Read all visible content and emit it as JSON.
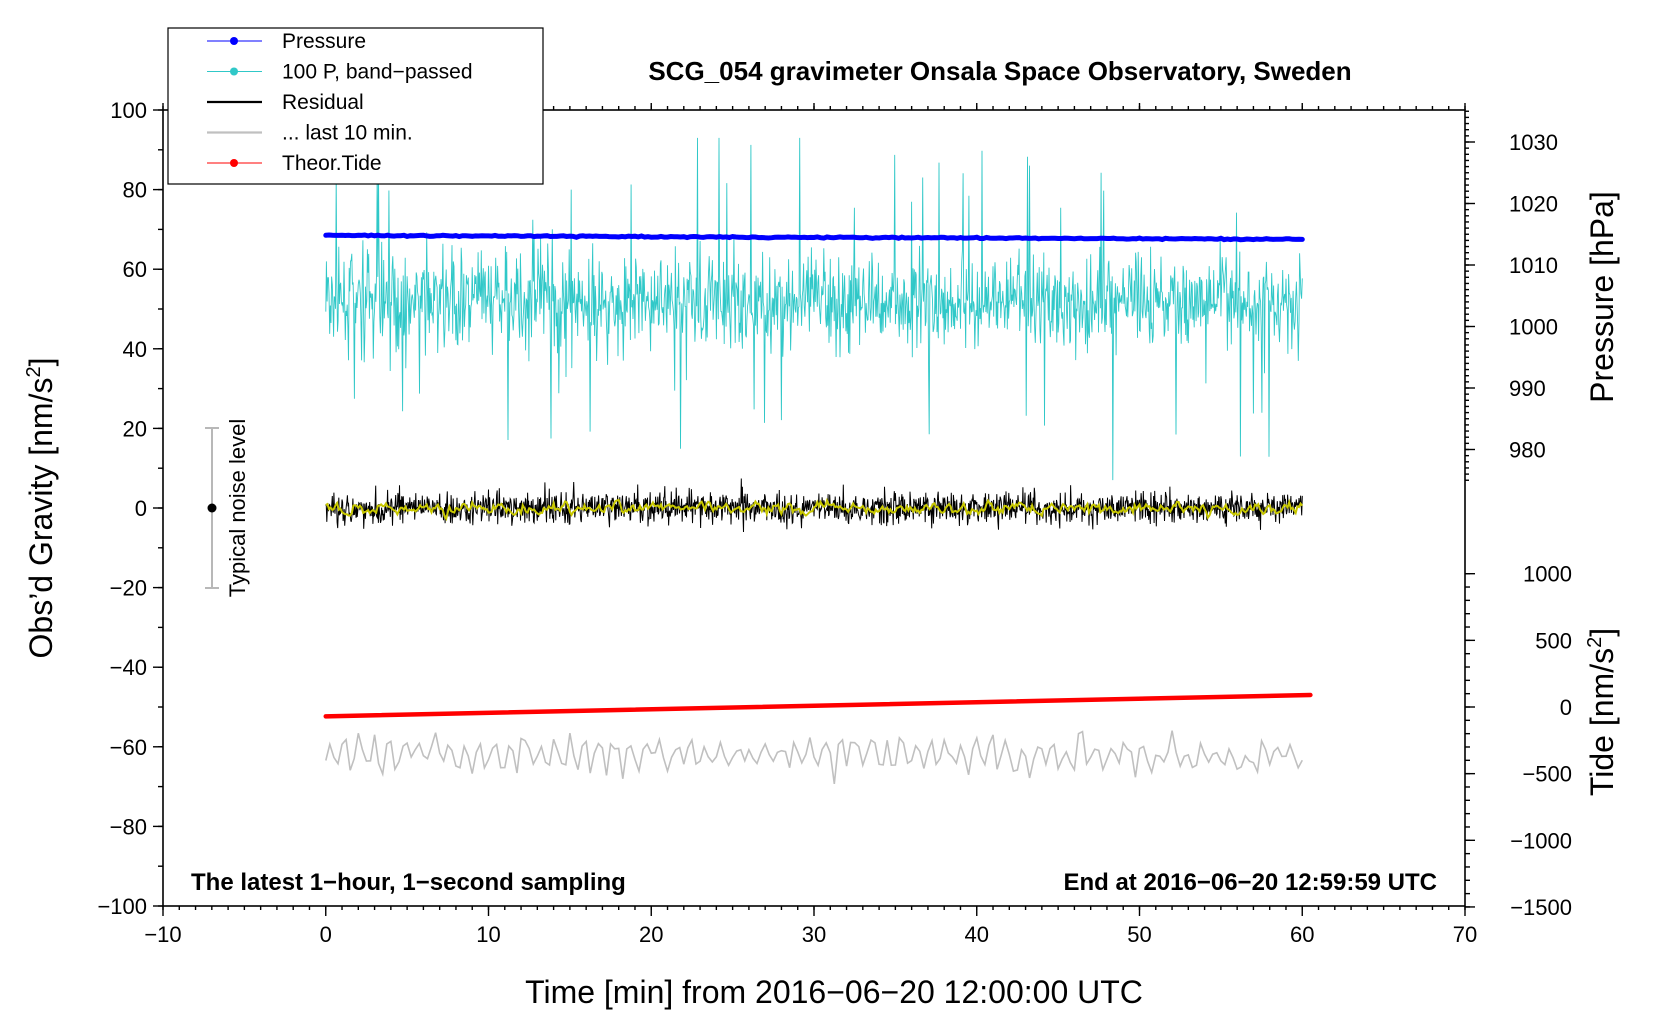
{
  "chart_data": {
    "type": "line",
    "title": "SCG_054 gravimeter Onsala Space Observatory, Sweden",
    "xlabel": "Time [min] from 2016−06−20 12:00:00 UTC",
    "ylabel_left": "Obs’d Gravity [nm/s²]",
    "ylabel_left_main": "Obs’d Gravity [nm/s",
    "ylabel_left_sup": "2",
    "ylabel_left_end": "]",
    "ylabel_pressure": "Pressure [hPa]",
    "ylabel_tide_main": "Tide [nm/s",
    "ylabel_tide_sup": "2",
    "ylabel_tide_end": "]",
    "xlim": [
      -10,
      70
    ],
    "ylim_left": [
      -100,
      100
    ],
    "pressure_range": [
      970,
      1035
    ],
    "tide_range": [
      -1500,
      1500
    ],
    "x_ticks": [
      "−10",
      "0",
      "10",
      "20",
      "30",
      "40",
      "50",
      "60",
      "70"
    ],
    "x_tick_values": [
      -10,
      0,
      10,
      20,
      30,
      40,
      50,
      60,
      70
    ],
    "y_ticks_left": [
      "100",
      "80",
      "60",
      "40",
      "20",
      "0",
      "−20",
      "−40",
      "−60",
      "−80",
      "−100"
    ],
    "y_tick_values_left": [
      100,
      80,
      60,
      40,
      20,
      0,
      -20,
      -40,
      -60,
      -80,
      -100
    ],
    "pressure_ticks": [
      "1030",
      "1020",
      "1010",
      "1000",
      "990",
      "980"
    ],
    "pressure_tick_values": [
      1030,
      1020,
      1010,
      1000,
      990,
      980
    ],
    "tide_ticks": [
      "1000",
      "500",
      "0",
      "−500",
      "−1000",
      "−1500"
    ],
    "tide_tick_values": [
      1000,
      500,
      0,
      -500,
      -1000,
      -1500
    ],
    "legend": [
      {
        "label": "Pressure",
        "color": "#0000ff",
        "marker": true
      },
      {
        "label": "100 P, band−passed",
        "color": "#30c8c8",
        "marker": true
      },
      {
        "label": "Residual",
        "color": "#000000",
        "marker": false
      },
      {
        "label": "... last 10 min.",
        "color": "#c0c0c0",
        "marker": false
      },
      {
        "label": "Theor.Tide",
        "color": "#ff0000",
        "marker": true
      }
    ],
    "series": [
      {
        "name": "Pressure",
        "axis": "left",
        "color": "#0000ff",
        "x_range": [
          0,
          60
        ],
        "start": 68.5,
        "end": 67.5,
        "note": "approx. 1014.8 hPa falling to 1014.2 hPa"
      },
      {
        "name": "100 P, band-passed",
        "axis": "left",
        "color": "#30c8c8",
        "x_range": [
          0,
          60
        ],
        "center": 52,
        "noise_amplitude": 12,
        "min": 7,
        "max": 93
      },
      {
        "name": "Residual",
        "axis": "left",
        "color": "#000000",
        "x_range": [
          0,
          60
        ],
        "center": 0,
        "noise_amplitude": 5,
        "min": -13,
        "max": 10
      },
      {
        "name": "Residual smoothed",
        "axis": "left",
        "color": "#c8c800",
        "x_range": [
          0,
          60
        ],
        "center": 0,
        "noise_amplitude": 1.5
      },
      {
        "name": "... last 10 min.",
        "axis": "left",
        "color": "#c0c0c0",
        "x_range": [
          0,
          60
        ],
        "center": -62,
        "noise_amplitude": 3,
        "min": -72,
        "max": -52
      },
      {
        "name": "Theor.Tide",
        "axis": "tide",
        "color": "#ff0000",
        "x_range": [
          0,
          60.5
        ],
        "start": -70,
        "end": 90
      }
    ],
    "noise_indicator": {
      "label": "Typical noise level",
      "x": -7,
      "y_center": 0,
      "y_low": -20,
      "y_high": 20
    },
    "annotations": {
      "left": "The latest 1−hour, 1−second sampling",
      "right": "End at 2016−06−20 12:59:59 UTC"
    }
  },
  "colors": {
    "pressure": "#0000ff",
    "band": "#30c8c8",
    "residual": "#000000",
    "smooth": "#c8c800",
    "last10": "#c0c0c0",
    "tide": "#ff0000",
    "noise_bar": "#b8b8b8"
  }
}
